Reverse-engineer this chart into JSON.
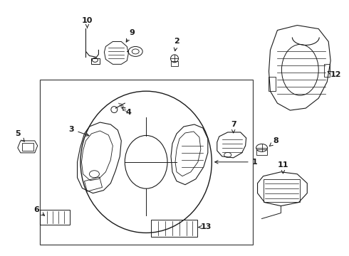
{
  "bg_color": "#ffffff",
  "line_color": "#1a1a1a",
  "fig_width": 4.9,
  "fig_height": 3.6,
  "dpi": 100,
  "font_size": 8.0
}
